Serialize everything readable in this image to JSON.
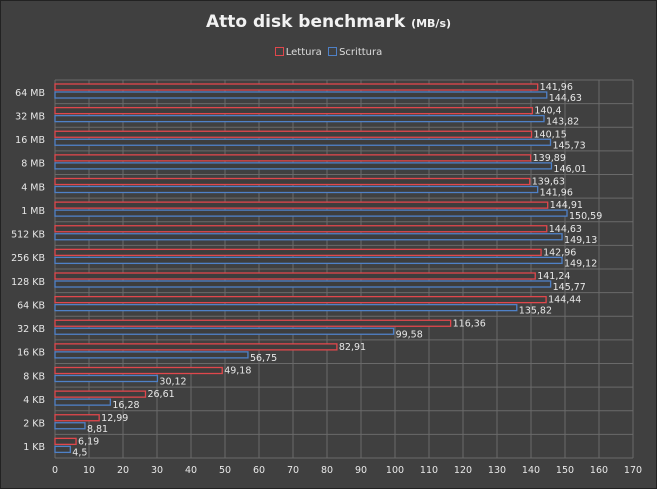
{
  "chart_data": {
    "type": "bar",
    "orientation": "horizontal",
    "title": "Atto disk benchmark",
    "title_unit": "(MB/s)",
    "xlabel": "",
    "ylabel": "",
    "xlim": [
      0,
      170
    ],
    "xticks": [
      0,
      10,
      20,
      30,
      40,
      50,
      60,
      70,
      80,
      90,
      100,
      110,
      120,
      130,
      140,
      150,
      160,
      170
    ],
    "grid": true,
    "legend_position": "top",
    "categories": [
      "64 MB",
      "32 MB",
      "16 MB",
      "8 MB",
      "4 MB",
      "1 MB",
      "512 KB",
      "256 KB",
      "128 KB",
      "64 KB",
      "32 KB",
      "16 KB",
      "8 KB",
      "4 KB",
      "2 KB",
      "1 KB"
    ],
    "series": [
      {
        "name": "Lettura",
        "color": "#e0474c",
        "values": [
          141.96,
          140.4,
          140.15,
          139.89,
          139.63,
          144.91,
          144.63,
          142.96,
          141.24,
          144.44,
          116.36,
          82.91,
          49.18,
          26.61,
          12.99,
          6.19
        ],
        "labels": [
          "141,96",
          "140,4",
          "140,15",
          "139,89",
          "139,63",
          "144,91",
          "144,63",
          "142,96",
          "141,24",
          "144,44",
          "116,36",
          "82,91",
          "49,18",
          "26,61",
          "12,99",
          "6,19"
        ]
      },
      {
        "name": "Scrittura",
        "color": "#4f81c7",
        "values": [
          144.63,
          143.82,
          145.73,
          146.01,
          141.96,
          150.59,
          149.13,
          149.12,
          145.77,
          135.82,
          99.58,
          56.75,
          30.12,
          16.28,
          8.81,
          4.5
        ],
        "labels": [
          "144,63",
          "143,82",
          "145,73",
          "146,01",
          "141,96",
          "150,59",
          "149,13",
          "149,12",
          "145,77",
          "135,82",
          "99,58",
          "56,75",
          "30,12",
          "16,28",
          "8,81",
          "4,5"
        ]
      }
    ]
  }
}
